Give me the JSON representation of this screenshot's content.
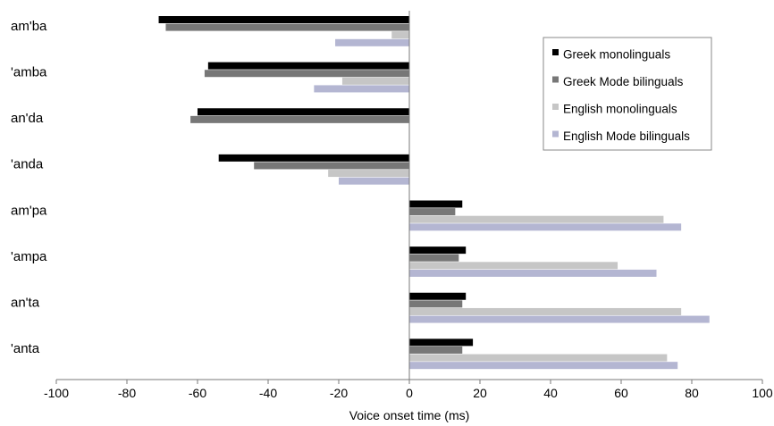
{
  "chart_data": {
    "type": "bar",
    "orientation": "horizontal",
    "categories": [
      "am'ba",
      "'amba",
      "an'da",
      "'anda",
      "am'pa",
      "'ampa",
      "an'ta",
      "'anta"
    ],
    "series": [
      {
        "name": "Greek monolinguals",
        "color": "#000000",
        "values": [
          -71,
          -57,
          -60,
          -54,
          15,
          16,
          16,
          18
        ]
      },
      {
        "name": "Greek Mode bilinguals",
        "color": "#777777",
        "values": [
          -69,
          -58,
          -62,
          -44,
          13,
          14,
          15,
          15
        ]
      },
      {
        "name": "English monolinguals",
        "color": "#c6c6c6",
        "values": [
          -5,
          -19,
          null,
          -23,
          72,
          59,
          77,
          73
        ]
      },
      {
        "name": "English Mode bilinguals",
        "color": "#b4b6d2",
        "values": [
          -21,
          -27,
          null,
          -20,
          77,
          70,
          85,
          76
        ]
      }
    ],
    "xlim": [
      -100,
      100
    ],
    "xticks": [
      -100,
      -80,
      -60,
      -40,
      -20,
      0,
      20,
      40,
      60,
      80,
      100
    ],
    "xlabel": "Voice onset time (ms)",
    "legend_position": "top-right",
    "grid": false
  }
}
